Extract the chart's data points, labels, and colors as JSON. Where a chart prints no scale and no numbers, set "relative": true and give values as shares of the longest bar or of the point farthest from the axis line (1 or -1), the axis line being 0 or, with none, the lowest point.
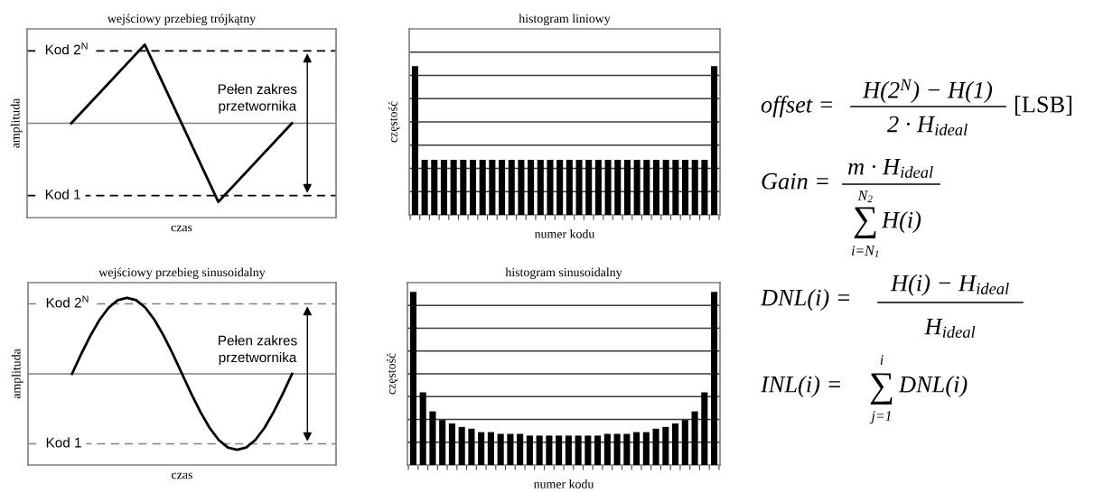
{
  "chart_data": [
    {
      "type": "line",
      "title": "wejściowy przebieg trójkątny",
      "xlabel": "czas",
      "ylabel": "amplituda",
      "relative": true,
      "tick_labels": false,
      "categories": [
        null,
        null,
        null,
        null
      ],
      "series": [
        {
          "color": "#000000",
          "values": [
            0,
            1,
            -1,
            0
          ]
        }
      ],
      "ref_lines": [
        {
          "axis": "y",
          "value": 0,
          "label": null,
          "color": "#808080",
          "line_style": "solid"
        },
        {
          "axis": "y",
          "value": 0.92,
          "label": "Kod 2$^{N}$",
          "color": "#000000",
          "line_style": "dashed"
        },
        {
          "axis": "y",
          "value": -0.92,
          "label": "Kod 1",
          "color": "#000000",
          "line_style": "dashed"
        }
      ],
      "annotations": [
        "Pełen zakres\nprzetwornika"
      ]
    },
    {
      "type": "bar",
      "title": "histogram liniowy",
      "xlabel": "numer kodu",
      "ylabel": "częstość",
      "relative": true,
      "tick_labels": false,
      "grid": "y",
      "color": "#000000",
      "categories": [
        null,
        null,
        null,
        null,
        null,
        null,
        null,
        null,
        null,
        null,
        null,
        null,
        null,
        null,
        null,
        null,
        null,
        null,
        null,
        null,
        null,
        null,
        null,
        null,
        null,
        null,
        null,
        null,
        null,
        null,
        null,
        null
      ],
      "values": [
        1,
        0.37,
        0.37,
        0.37,
        0.37,
        0.37,
        0.37,
        0.37,
        0.37,
        0.37,
        0.37,
        0.37,
        0.37,
        0.37,
        0.37,
        0.37,
        0.37,
        0.37,
        0.37,
        0.37,
        0.37,
        0.37,
        0.37,
        0.37,
        0.37,
        0.37,
        0.37,
        0.37,
        0.37,
        0.37,
        0.37,
        1
      ]
    },
    {
      "type": "line",
      "title": "wejściowy przebieg sinusoidalny",
      "xlabel": "czas",
      "ylabel": "amplituda",
      "relative": true,
      "tick_labels": false,
      "categories": [
        null,
        null,
        null,
        null,
        null,
        null,
        null,
        null,
        null,
        null,
        null,
        null,
        null,
        null,
        null,
        null,
        null,
        null,
        null,
        null,
        null,
        null,
        null,
        null,
        null
      ],
      "series": [
        {
          "color": "#000000",
          "values": [
            0,
            0.26,
            0.5,
            0.71,
            0.87,
            0.97,
            1,
            0.97,
            0.87,
            0.71,
            0.5,
            0.26,
            0,
            -0.26,
            -0.5,
            -0.71,
            -0.87,
            -0.97,
            -1,
            -0.97,
            -0.87,
            -0.71,
            -0.5,
            -0.26,
            0
          ]
        }
      ],
      "ref_lines": [
        {
          "axis": "y",
          "value": 0,
          "label": null,
          "color": "#808080",
          "line_style": "solid"
        },
        {
          "axis": "y",
          "value": 0.92,
          "label": "Kod 2$^{N}$",
          "color": "#808080",
          "line_style": "dashed"
        },
        {
          "axis": "y",
          "value": -0.92,
          "label": "Kod 1",
          "color": "#808080",
          "line_style": "dashed"
        }
      ],
      "annotations": [
        "Pełen zakres\nprzetwornika"
      ]
    },
    {
      "type": "bar",
      "title": "histogram sinusoidalny",
      "xlabel": "numer kodu",
      "ylabel": "częstość",
      "relative": true,
      "tick_labels": false,
      "grid": "y",
      "color": "#000000",
      "categories": [
        null,
        null,
        null,
        null,
        null,
        null,
        null,
        null,
        null,
        null,
        null,
        null,
        null,
        null,
        null,
        null,
        null,
        null,
        null,
        null,
        null,
        null,
        null,
        null,
        null,
        null,
        null,
        null,
        null,
        null,
        null,
        null
      ],
      "values": [
        1,
        0.42,
        0.31,
        0.26,
        0.24,
        0.22,
        0.21,
        0.19,
        0.19,
        0.18,
        0.18,
        0.18,
        0.17,
        0.17,
        0.17,
        0.17,
        0.17,
        0.17,
        0.17,
        0.17,
        0.18,
        0.18,
        0.18,
        0.19,
        0.19,
        0.21,
        0.22,
        0.24,
        0.26,
        0.31,
        0.42,
        1
      ]
    },
    {
      "type": "other",
      "annotations": [
        "offset =",
        "H(2$^{N}$) − H(1)",
        "2 · H$_{ideal}$",
        "[LSB]",
        "Gain =",
        "m · H$_{ideal}$",
        "∑",
        "N$_{2}$",
        "i=N$_{1}$",
        "H(i)",
        "DNL(i) =",
        "H(i) − H$_{ideal}$",
        "H$_{ideal}$",
        "INL(i) =",
        "∑",
        "i",
        "j=1",
        "DNL(i)"
      ]
    }
  ]
}
